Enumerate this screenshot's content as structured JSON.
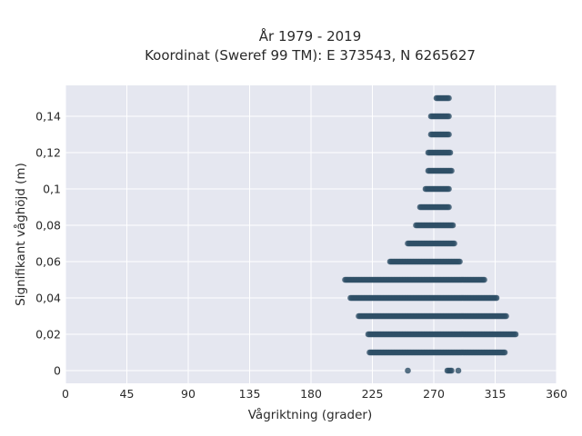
{
  "chart_data": {
    "type": "scatter",
    "title_lines": [
      "År 1979 - 2019",
      "Koordinat (Sweref 99 TM): E 373543, N 6265627"
    ],
    "xlabel": "Vågriktning (grader)",
    "ylabel": "Signifikant våghöjd (m)",
    "xlim": [
      0,
      360
    ],
    "ylim": [
      -0.007,
      0.157
    ],
    "x_ticks": [
      0,
      45,
      90,
      135,
      180,
      225,
      270,
      315,
      360
    ],
    "x_tick_labels": [
      "0",
      "45",
      "90",
      "135",
      "180",
      "225",
      "270",
      "315",
      "360"
    ],
    "y_ticks": [
      0,
      0.02,
      0.04,
      0.06,
      0.08,
      0.1,
      0.12,
      0.14
    ],
    "y_tick_labels": [
      "0",
      "0,02",
      "0,04",
      "0,06",
      "0,08",
      "0,1",
      "0,12",
      "0,14"
    ],
    "grid": true,
    "background_color": "#e5e7f0",
    "marker_color": "#2e4f66",
    "bands": [
      {
        "y": 0.0,
        "x_min": 251,
        "x_max": 251
      },
      {
        "y": 0.0,
        "x_min": 280,
        "x_max": 283
      },
      {
        "y": 0.0,
        "x_min": 288,
        "x_max": 288
      },
      {
        "y": 0.01,
        "x_min": 223,
        "x_max": 322
      },
      {
        "y": 0.02,
        "x_min": 222,
        "x_max": 330
      },
      {
        "y": 0.03,
        "x_min": 215,
        "x_max": 323
      },
      {
        "y": 0.04,
        "x_min": 209,
        "x_max": 316
      },
      {
        "y": 0.05,
        "x_min": 205,
        "x_max": 307
      },
      {
        "y": 0.06,
        "x_min": 238,
        "x_max": 289
      },
      {
        "y": 0.07,
        "x_min": 251,
        "x_max": 285
      },
      {
        "y": 0.08,
        "x_min": 257,
        "x_max": 284
      },
      {
        "y": 0.09,
        "x_min": 260,
        "x_max": 281
      },
      {
        "y": 0.1,
        "x_min": 264,
        "x_max": 281
      },
      {
        "y": 0.11,
        "x_min": 266,
        "x_max": 283
      },
      {
        "y": 0.12,
        "x_min": 266,
        "x_max": 282
      },
      {
        "y": 0.13,
        "x_min": 268,
        "x_max": 281
      },
      {
        "y": 0.14,
        "x_min": 268,
        "x_max": 281
      },
      {
        "y": 0.15,
        "x_min": 272,
        "x_max": 281
      }
    ]
  }
}
